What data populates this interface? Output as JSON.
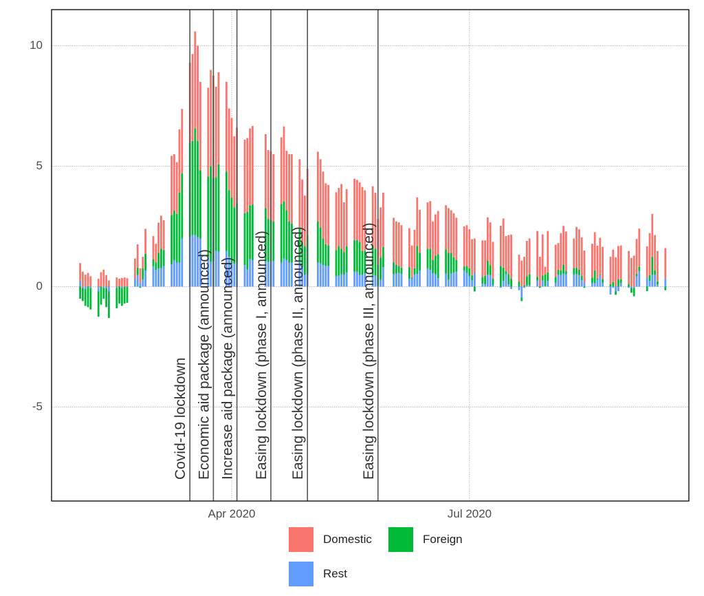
{
  "chart_data": {
    "type": "bar",
    "stacked": true,
    "title": "",
    "xlabel": "",
    "ylabel": "",
    "ylim": [
      -8.9,
      11.5
    ],
    "xlim": [
      "2020-01-22",
      "2020-09-28"
    ],
    "yticks": [
      -5,
      0,
      5,
      10
    ],
    "xticks": [
      {
        "date": "2020-04-01",
        "label": "Apr 2020"
      },
      {
        "date": "2020-07-01",
        "label": "Jul 2020"
      }
    ],
    "grid": true,
    "legend_position": "bottom",
    "series_order": [
      "Domestic",
      "Foreign",
      "Rest"
    ],
    "colors": {
      "Domestic": "#F8766D",
      "Foreign": "#00BA38",
      "Rest": "#619CFF"
    },
    "events": [
      {
        "date": "2020-03-16",
        "label": "Covid-19 lockdown"
      },
      {
        "date": "2020-03-25",
        "label": "Economic aid package (announced)"
      },
      {
        "date": "2020-04-03",
        "label": "Increase aid package (announced)"
      },
      {
        "date": "2020-04-16",
        "label": "Easing lockdown (phase I, announced)"
      },
      {
        "date": "2020-04-30",
        "label": "Easing lockdown (phase II, announced)"
      },
      {
        "date": "2020-05-27",
        "label": "Easing lockdown (phase III, announced)"
      }
    ],
    "columns": [
      "date",
      "Domestic",
      "Foreign",
      "Rest"
    ],
    "rows": [
      [
        "2020-02-03",
        0.74,
        -0.5,
        0.24
      ],
      [
        "2020-02-04",
        0.62,
        -0.55,
        -0.05
      ],
      [
        "2020-02-05",
        0.5,
        -0.7,
        -0.1
      ],
      [
        "2020-02-06",
        0.55,
        -0.85,
        0.02
      ],
      [
        "2020-02-07",
        0.43,
        -0.9,
        -0.05
      ],
      [
        "2020-02-10",
        0.33,
        -1.05,
        -0.2
      ],
      [
        "2020-02-11",
        0.6,
        -0.75,
        0
      ],
      [
        "2020-02-12",
        0.71,
        -0.45,
        -0.05
      ],
      [
        "2020-02-13",
        0.48,
        -0.8,
        -0.05
      ],
      [
        "2020-02-14",
        0.26,
        -1.1,
        -0.2
      ],
      [
        "2020-02-17",
        0.38,
        -0.85,
        -0.05
      ],
      [
        "2020-02-18",
        0.33,
        -0.7,
        0
      ],
      [
        "2020-02-19",
        0.36,
        -0.75,
        -0.05
      ],
      [
        "2020-02-20",
        0.38,
        -0.7,
        0
      ],
      [
        "2020-02-21",
        0.35,
        -0.65,
        -0.02
      ],
      [
        "2020-02-24",
        0.84,
        0,
        0.33
      ],
      [
        "2020-02-25",
        0.97,
        0.31,
        0.48
      ],
      [
        "2020-02-26",
        0.6,
        -0.05,
        0.16
      ],
      [
        "2020-02-27",
        0.48,
        0.46,
        0.3
      ],
      [
        "2020-02-28",
        1.04,
        0.69,
        0.67
      ],
      [
        "2020-03-02",
        0.96,
        0.29,
        0.85
      ],
      [
        "2020-03-03",
        0.78,
        0.3,
        0.7
      ],
      [
        "2020-03-04",
        1.26,
        0.65,
        0.75
      ],
      [
        "2020-03-05",
        1.38,
        0.8,
        0.77
      ],
      [
        "2020-03-06",
        1.24,
        0.67,
        0.85
      ],
      [
        "2020-03-09",
        2.46,
        2.05,
        0.92
      ],
      [
        "2020-03-10",
        2.34,
        2.06,
        1.1
      ],
      [
        "2020-03-11",
        2.15,
        2.02,
        1.0
      ],
      [
        "2020-03-12",
        2.63,
        2.9,
        1.0
      ],
      [
        "2020-03-13",
        2.68,
        2.7,
        2.0
      ],
      [
        "2020-03-16",
        3.33,
        3.9,
        2.07
      ],
      [
        "2020-03-17",
        3.61,
        3.91,
        2.14
      ],
      [
        "2020-03-18",
        4.03,
        4.43,
        2.14
      ],
      [
        "2020-03-19",
        3.95,
        4.0,
        2.05
      ],
      [
        "2020-03-20",
        3.67,
        2.83,
        2.0
      ],
      [
        "2020-03-23",
        3.69,
        3.33,
        1.24
      ],
      [
        "2020-03-24",
        4.0,
        3.97,
        1.03
      ],
      [
        "2020-03-25",
        4.24,
        3.47,
        1.05
      ],
      [
        "2020-03-26",
        3.76,
        3.06,
        1.48
      ],
      [
        "2020-03-27",
        3.82,
        3.63,
        1.45
      ],
      [
        "2020-03-30",
        3.72,
        3.3,
        1.48
      ],
      [
        "2020-03-31",
        3.4,
        2.76,
        1.24
      ],
      [
        "2020-04-01",
        3.3,
        2.7,
        1.0
      ],
      [
        "2020-04-02",
        2.95,
        2.34,
        0.95
      ],
      [
        "2020-04-03",
        3.13,
        2.47,
        1.0
      ],
      [
        "2020-04-06",
        3.05,
        2.15,
        0.9
      ],
      [
        "2020-04-07",
        3.07,
        2.39,
        0.71
      ],
      [
        "2020-04-08",
        3.19,
        2.24,
        1.14
      ],
      [
        "2020-04-09",
        3.26,
        2.31,
        1.1
      ],
      [
        "2020-04-14",
        3.07,
        2.21,
        1.05
      ],
      [
        "2020-04-15",
        2.86,
        1.79,
        1.02
      ],
      [
        "2020-04-16",
        2.86,
        1.69,
        1.07
      ],
      [
        "2020-04-17",
        2.79,
        1.64,
        1.07
      ],
      [
        "2020-04-20",
        2.77,
        2.43,
        1.0
      ],
      [
        "2020-04-21",
        3.1,
        2.38,
        1.17
      ],
      [
        "2020-04-22",
        2.47,
        2.07,
        1.1
      ],
      [
        "2020-04-23",
        2.8,
        1.7,
        1.0
      ],
      [
        "2020-04-24",
        2.88,
        1.62,
        1.0
      ],
      [
        "2020-04-27",
        2.83,
        1.44,
        1.02
      ],
      [
        "2020-04-28",
        2.59,
        1.05,
        0.81
      ],
      [
        "2020-04-29",
        2.11,
        1.17,
        0.5
      ],
      [
        "2020-04-30",
        2.75,
        1.62,
        0.52
      ],
      [
        "2020-05-04",
        2.89,
        1.71,
        1.0
      ],
      [
        "2020-05-05",
        2.83,
        1.49,
        0.97
      ],
      [
        "2020-05-06",
        2.78,
        1.1,
        0.9
      ],
      [
        "2020-05-07",
        2.53,
        0.9,
        0.86
      ],
      [
        "2020-05-08",
        2.51,
        0.85,
        0.86
      ],
      [
        "2020-05-11",
        2.4,
        1.09,
        0.43
      ],
      [
        "2020-05-12",
        2.41,
        1.24,
        0.45
      ],
      [
        "2020-05-13",
        2.69,
        1.05,
        0.52
      ],
      [
        "2020-05-14",
        2.07,
        0.93,
        0.5
      ],
      [
        "2020-05-15",
        2.38,
        1.07,
        0.6
      ],
      [
        "2020-05-18",
        2.55,
        1.31,
        0.62
      ],
      [
        "2020-05-19",
        2.5,
        1.31,
        0.62
      ],
      [
        "2020-05-20",
        2.47,
        1.38,
        0.48
      ],
      [
        "2020-05-21",
        2.66,
        0.98,
        0.5
      ],
      [
        "2020-05-22",
        2.52,
        0.93,
        0.55
      ],
      [
        "2020-05-25",
        2.46,
        1.23,
        0.48
      ],
      [
        "2020-05-26",
        2.33,
        1.12,
        0.45
      ],
      [
        "2020-05-27",
        1.91,
        0.85,
        0.05
      ],
      [
        "2020-05-28",
        2.08,
        0.92,
        0.29
      ],
      [
        "2020-05-29",
        2.25,
        0.84,
        0.81
      ],
      [
        "2020-06-02",
        1.86,
        0.48,
        0.52
      ],
      [
        "2020-06-03",
        1.81,
        0.36,
        0.54
      ],
      [
        "2020-06-04",
        1.81,
        0.29,
        0.57
      ],
      [
        "2020-06-05",
        1.76,
        0.27,
        0.52
      ],
      [
        "2020-06-08",
        1.62,
        0.48,
        0.33
      ],
      [
        "2020-06-09",
        1.33,
        0.05,
        0.33
      ],
      [
        "2020-06-10",
        1.6,
        0.26,
        0.5
      ],
      [
        "2020-06-11",
        2.02,
        1.17,
        0.52
      ],
      [
        "2020-06-12",
        1.79,
        0.73,
        0.67
      ],
      [
        "2020-06-15",
        1.93,
        0.81,
        0.76
      ],
      [
        "2020-06-16",
        1.98,
        0.87,
        0.7
      ],
      [
        "2020-06-17",
        1.61,
        0.55,
        0.55
      ],
      [
        "2020-06-18",
        1.71,
        0.77,
        0.52
      ],
      [
        "2020-06-19",
        1.79,
        1.0,
        0.35
      ],
      [
        "2020-06-22",
        1.84,
        1.0,
        0.54
      ],
      [
        "2020-06-23",
        1.86,
        1.11,
        0.29
      ],
      [
        "2020-06-24",
        1.77,
        0.86,
        0.54
      ],
      [
        "2020-06-25",
        1.83,
        0.64,
        0.58
      ],
      [
        "2020-06-26",
        1.76,
        0.48,
        0.62
      ],
      [
        "2020-06-29",
        1.66,
        0.17,
        0.67
      ],
      [
        "2020-06-30",
        1.69,
        0.29,
        0.57
      ],
      [
        "2020-07-01",
        1.62,
        0.33,
        0.43
      ],
      [
        "2020-07-02",
        1.51,
        0.19,
        0.27
      ],
      [
        "2020-07-03",
        1.43,
        -0.2,
        0.57
      ],
      [
        "2020-07-06",
        1.51,
        0.29,
        0.12
      ],
      [
        "2020-07-07",
        1.47,
        0.35,
        0.1
      ],
      [
        "2020-07-08",
        1.81,
        0.57,
        0.5
      ],
      [
        "2020-07-09",
        1.78,
        0.41,
        0.48
      ],
      [
        "2020-07-10",
        1.53,
        0.26,
        0.07
      ],
      [
        "2020-07-13",
        1.67,
        0.86,
        -0.05
      ],
      [
        "2020-07-14",
        2.04,
        0.55,
        0.24
      ],
      [
        "2020-07-15",
        1.46,
        0.12,
        0.52
      ],
      [
        "2020-07-16",
        1.62,
        0.42,
        0.1
      ],
      [
        "2020-07-17",
        1.83,
        0.33,
        -0.1
      ],
      [
        "2020-07-20",
        1.13,
        0.2,
        -0.15
      ],
      [
        "2020-07-21",
        1.08,
        -0.15,
        -0.45
      ],
      [
        "2020-07-22",
        1.19,
        0.05,
        -0.05
      ],
      [
        "2020-07-23",
        1.47,
        0.38,
        0.05
      ],
      [
        "2020-07-24",
        1.48,
        0.47,
        0.05
      ],
      [
        "2020-07-27",
        1.9,
        0.15,
        0.26
      ],
      [
        "2020-07-28",
        1.24,
        -0.05,
        0
      ],
      [
        "2020-07-29",
        1.71,
        0.2,
        0.26
      ],
      [
        "2020-07-30",
        0.33,
        0.47,
        0.03
      ],
      [
        "2020-07-31",
        1.72,
        0.35,
        0.24
      ],
      [
        "2020-08-03",
        1.34,
        0.24,
        0.16
      ],
      [
        "2020-08-04",
        1.11,
        0.2,
        0.5
      ],
      [
        "2020-08-05",
        1.54,
        0.2,
        0.48
      ],
      [
        "2020-08-06",
        1.62,
        0.36,
        0.54
      ],
      [
        "2020-08-07",
        1.65,
        0.12,
        0.52
      ],
      [
        "2020-08-10",
        1.22,
        0.28,
        0.5
      ],
      [
        "2020-08-11",
        1.7,
        0.26,
        0.52
      ],
      [
        "2020-08-12",
        1.67,
        0.23,
        0.48
      ],
      [
        "2020-08-13",
        1.6,
        0.18,
        0.27
      ],
      [
        "2020-08-14",
        1.33,
        -0.05,
        0.17
      ],
      [
        "2020-08-17",
        1.4,
        0.24,
        0.14
      ],
      [
        "2020-08-18",
        1.59,
        0.53,
        0.14
      ],
      [
        "2020-08-19",
        1.37,
        0.04,
        0.29
      ],
      [
        "2020-08-20",
        1.53,
        0.02,
        0.48
      ],
      [
        "2020-08-21",
        1.34,
        0.14,
        0.17
      ],
      [
        "2020-08-24",
        1.14,
        0.1,
        -0.33
      ],
      [
        "2020-08-25",
        1.35,
        0.19,
        -0.05
      ],
      [
        "2020-08-26",
        1.22,
        -0.15,
        -0.19
      ],
      [
        "2020-08-27",
        1.39,
        0.3,
        -0.19
      ],
      [
        "2020-08-28",
        1.4,
        0.16,
        0.15
      ],
      [
        "2020-08-31",
        1.38,
        0.1,
        -0.05
      ],
      [
        "2020-09-01",
        1.19,
        -0.2,
        -0.05
      ],
      [
        "2020-09-02",
        1.29,
        -0.35,
        -0.05
      ],
      [
        "2020-09-03",
        1.45,
        0.1,
        0.43
      ],
      [
        "2020-09-04",
        1.59,
        0.17,
        0.65
      ],
      [
        "2020-09-07",
        1.29,
        -0.19,
        0.38
      ],
      [
        "2020-09-08",
        1.74,
        0.24,
        0.24
      ],
      [
        "2020-09-09",
        1.78,
        0.74,
        0.5
      ],
      [
        "2020-09-10",
        1.47,
        0.17,
        0.5
      ],
      [
        "2020-09-11",
        1.26,
        0.12,
        0.1
      ],
      [
        "2020-09-14",
        1.27,
        -0.15,
        0.33
      ]
    ]
  },
  "legend": {
    "domestic": "Domestic",
    "foreign": "Foreign",
    "rest": "Rest"
  },
  "yticks_labels": {
    "m5": "-5",
    "z": "0",
    "p5": "5",
    "p10": "10"
  },
  "xticks_labels": {
    "apr": "Apr 2020",
    "jul": "Jul 2020"
  }
}
